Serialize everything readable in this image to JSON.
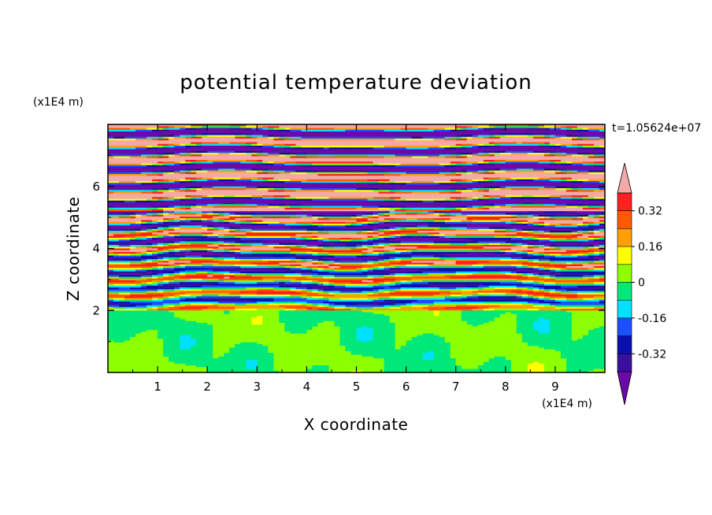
{
  "chart_data": {
    "type": "heatmap",
    "title": "potential temperature deviation",
    "xlabel": "X coordinate",
    "ylabel": "Z coordinate",
    "x_unit": "(x1E4 m)",
    "y_unit": "(x1E4 m)",
    "time_label": "t=1.05624e+07",
    "xlim": [
      0,
      10
    ],
    "ylim": [
      0,
      8
    ],
    "x_ticks": [
      "1",
      "2",
      "3",
      "4",
      "5",
      "6",
      "7",
      "8",
      "9"
    ],
    "y_ticks": [
      "2",
      "4",
      "6"
    ],
    "colorbar": {
      "levels": [
        -0.4,
        -0.32,
        -0.24,
        -0.16,
        -0.08,
        0,
        0.08,
        0.16,
        0.24,
        0.32,
        0.4
      ],
      "tick_labels": [
        "0.32",
        "0.16",
        "0",
        "-0.16",
        "-0.32"
      ],
      "colors": [
        "#6a0aa8",
        "#3a0fa0",
        "#0a10b0",
        "#1a50ff",
        "#00e0ff",
        "#00e87a",
        "#8cff00",
        "#ffff00",
        "#ffa000",
        "#ff5a00",
        "#ff2020",
        "#f4a8a8"
      ],
      "extend": "both"
    },
    "layers": [
      {
        "z_range": [
          0,
          2.0
        ],
        "values": "-0.08 to 0.08, near-neutral"
      },
      {
        "z_range": [
          2.0,
          5.2
        ],
        "values": "-0.4 to 0.4, turbulent mixing"
      },
      {
        "z_range": [
          5.2,
          8.0
        ],
        "values": "alternating bands below -0.4 and above 0.4"
      }
    ]
  }
}
